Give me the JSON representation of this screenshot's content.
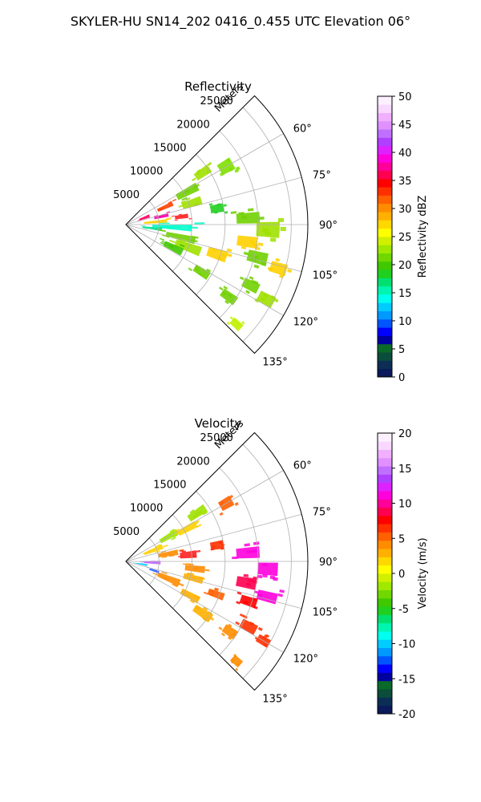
{
  "figure": {
    "title": "SKYLER-HU  SN14_202  0416_0.455 UTC Elevation 06°"
  },
  "chart_data": [
    {
      "type": "heatmap",
      "title": "Reflectivity",
      "rlabel": "Meters",
      "r_ticks": [
        "5000",
        "10000",
        "15000",
        "20000",
        "25000"
      ],
      "theta_ticks": [
        "60°",
        "75°",
        "90°",
        "105°",
        "120°",
        "135°"
      ],
      "theta_range_deg": [
        45,
        135
      ],
      "r_max_m": 27500,
      "grid": true,
      "colorbar": {
        "label": "Reflectivity dBZ",
        "range": [
          0,
          50
        ],
        "ticks": [
          "0",
          "5",
          "10",
          "15",
          "20",
          "25",
          "30",
          "35",
          "40",
          "45",
          "50"
        ],
        "colors": [
          "#0a1a5a",
          "#0c2e54",
          "#0a4d3a",
          "#0a6a2a",
          "#0000a0",
          "#0000ff",
          "#0055ff",
          "#0099ff",
          "#00ccff",
          "#00ffee",
          "#00f5b0",
          "#00e070",
          "#20d020",
          "#40c800",
          "#70d800",
          "#a0e800",
          "#d0f000",
          "#ffff00",
          "#ffd800",
          "#ffb000",
          "#ff8c00",
          "#ff6000",
          "#ff3000",
          "#ff0000",
          "#ff0050",
          "#ff0099",
          "#ff00dd",
          "#dd22ff",
          "#b040ff",
          "#c070ff",
          "#e090ff",
          "#f0b0ff",
          "#f8d8ff",
          "#fcf0ff"
        ]
      },
      "echoes": [
        {
          "az": 77,
          "r": 5500,
          "dr": 2200,
          "da": 5,
          "c": "#ff00aa"
        },
        {
          "az": 70,
          "r": 3000,
          "dr": 1600,
          "da": 7,
          "c": "#ff0066"
        },
        {
          "az": 82,
          "r": 8500,
          "dr": 2000,
          "da": 4,
          "c": "#ff2020"
        },
        {
          "az": 66,
          "r": 6500,
          "dr": 2500,
          "da": 5,
          "c": "#ff4000"
        },
        {
          "az": 85,
          "r": 4500,
          "dr": 3500,
          "da": 5,
          "c": "#ffd000"
        },
        {
          "az": 72,
          "r": 10500,
          "dr": 3000,
          "da": 6,
          "c": "#a0e000"
        },
        {
          "az": 62,
          "r": 10500,
          "dr": 3500,
          "da": 6,
          "c": "#70d000"
        },
        {
          "az": 60,
          "r": 17500,
          "dr": 2200,
          "da": 6,
          "c": "#80e000"
        },
        {
          "az": 56,
          "r": 14000,
          "dr": 2500,
          "da": 5,
          "c": "#a0e000"
        },
        {
          "az": 93,
          "r": 7000,
          "dr": 6000,
          "da": 6,
          "c": "#00ffcc"
        },
        {
          "az": 98,
          "r": 4000,
          "dr": 3000,
          "da": 5,
          "c": "#00e090"
        },
        {
          "az": 103,
          "r": 8500,
          "dr": 4500,
          "da": 6,
          "c": "#70d000"
        },
        {
          "az": 110,
          "r": 10000,
          "dr": 4000,
          "da": 7,
          "c": "#a0e000"
        },
        {
          "az": 116,
          "r": 8000,
          "dr": 3000,
          "da": 7,
          "c": "#40c800"
        },
        {
          "az": 108,
          "r": 14500,
          "dr": 3000,
          "da": 6,
          "c": "#ffd000"
        },
        {
          "az": 87,
          "r": 18500,
          "dr": 3500,
          "da": 5,
          "c": "#70d000"
        },
        {
          "az": 92,
          "r": 21500,
          "dr": 3500,
          "da": 6,
          "c": "#a0e000"
        },
        {
          "az": 98,
          "r": 18500,
          "dr": 3000,
          "da": 5,
          "c": "#ffd000"
        },
        {
          "az": 104,
          "r": 20500,
          "dr": 3000,
          "da": 5,
          "c": "#70d000"
        },
        {
          "az": 106,
          "r": 24000,
          "dr": 2500,
          "da": 4,
          "c": "#ffd000"
        },
        {
          "az": 116,
          "r": 21000,
          "dr": 2500,
          "da": 4,
          "c": "#70d000"
        },
        {
          "az": 118,
          "r": 24000,
          "dr": 2500,
          "da": 4,
          "c": "#a0e000"
        },
        {
          "az": 125,
          "r": 19000,
          "dr": 2500,
          "da": 4,
          "c": "#70d000"
        },
        {
          "az": 132,
          "r": 22500,
          "dr": 1800,
          "da": 3,
          "c": "#c0f000"
        },
        {
          "az": 122,
          "r": 13500,
          "dr": 2500,
          "da": 5,
          "c": "#70d000"
        },
        {
          "az": 80,
          "r": 14000,
          "dr": 2000,
          "da": 5,
          "c": "#20d020"
        }
      ]
    },
    {
      "type": "heatmap",
      "title": "Velocity",
      "rlabel": "Meters",
      "r_ticks": [
        "5000",
        "10000",
        "15000",
        "20000",
        "25000"
      ],
      "theta_ticks": [
        "60°",
        "75°",
        "90°",
        "105°",
        "120°",
        "135°"
      ],
      "theta_range_deg": [
        45,
        135
      ],
      "r_max_m": 27500,
      "grid": true,
      "colorbar": {
        "label": "Velocity (m/s)",
        "range": [
          -20,
          20
        ],
        "ticks": [
          "-20",
          "-15",
          "-10",
          "-5",
          "0",
          "5",
          "10",
          "15",
          "20"
        ],
        "colors": [
          "#0a1a5a",
          "#0c2e54",
          "#0a4d3a",
          "#0a6a2a",
          "#0000a0",
          "#0000ff",
          "#0055ff",
          "#0099ff",
          "#00ccff",
          "#00ffee",
          "#00f5b0",
          "#00e070",
          "#20d020",
          "#40c800",
          "#70d800",
          "#a0e800",
          "#d0f000",
          "#ffff00",
          "#ffd800",
          "#ffb000",
          "#ff8c00",
          "#ff6000",
          "#ff3000",
          "#ff0000",
          "#ff0050",
          "#ff0099",
          "#ff00dd",
          "#dd22ff",
          "#b040ff",
          "#c070ff",
          "#e090ff",
          "#f0b0ff",
          "#f8d8ff",
          "#fcf0ff"
        ]
      },
      "echoes": [
        {
          "az": 68,
          "r": 4500,
          "dr": 3000,
          "da": 7,
          "c": "#ffd000"
        },
        {
          "az": 60,
          "r": 7500,
          "dr": 3000,
          "da": 6,
          "c": "#a0e800"
        },
        {
          "az": 56,
          "r": 13000,
          "dr": 3000,
          "da": 5,
          "c": "#a0e000"
        },
        {
          "az": 62,
          "r": 10500,
          "dr": 3000,
          "da": 5,
          "c": "#ffd000"
        },
        {
          "az": 80,
          "r": 6500,
          "dr": 3000,
          "da": 6,
          "c": "#ff8c00"
        },
        {
          "az": 92,
          "r": 4000,
          "dr": 2500,
          "da": 6,
          "c": "#c060ff"
        },
        {
          "az": 100,
          "r": 2500,
          "dr": 1600,
          "da": 5,
          "c": "#00ccff"
        },
        {
          "az": 108,
          "r": 4500,
          "dr": 1500,
          "da": 4,
          "c": "#3060ff"
        },
        {
          "az": 112,
          "r": 7000,
          "dr": 3500,
          "da": 7,
          "c": "#ff8c00"
        },
        {
          "az": 84,
          "r": 9500,
          "dr": 2500,
          "da": 6,
          "c": "#ff2020"
        },
        {
          "az": 96,
          "r": 10500,
          "dr": 3000,
          "da": 5,
          "c": "#ff8c00"
        },
        {
          "az": 104,
          "r": 10500,
          "dr": 3000,
          "da": 5,
          "c": "#ffb000"
        },
        {
          "az": 118,
          "r": 11000,
          "dr": 3000,
          "da": 5,
          "c": "#ffb000"
        },
        {
          "az": 124,
          "r": 14000,
          "dr": 3000,
          "da": 5,
          "c": "#ffb000"
        },
        {
          "az": 110,
          "r": 14500,
          "dr": 2500,
          "da": 4,
          "c": "#ff6000"
        },
        {
          "az": 86,
          "r": 18500,
          "dr": 3500,
          "da": 5,
          "c": "#ff00dd"
        },
        {
          "az": 93,
          "r": 21500,
          "dr": 3000,
          "da": 5,
          "c": "#ff00dd"
        },
        {
          "az": 100,
          "r": 18500,
          "dr": 3000,
          "da": 5,
          "c": "#ff0050"
        },
        {
          "az": 104,
          "r": 22000,
          "dr": 3000,
          "da": 4,
          "c": "#ff00dd"
        },
        {
          "az": 108,
          "r": 19500,
          "dr": 2500,
          "da": 4,
          "c": "#ff0000"
        },
        {
          "az": 118,
          "r": 21000,
          "dr": 2500,
          "da": 4,
          "c": "#ff3000"
        },
        {
          "az": 120,
          "r": 24000,
          "dr": 2000,
          "da": 3,
          "c": "#ff3000"
        },
        {
          "az": 124,
          "r": 19000,
          "dr": 2200,
          "da": 4,
          "c": "#ff8c00"
        },
        {
          "az": 132,
          "r": 22500,
          "dr": 1600,
          "da": 3,
          "c": "#ff8c00"
        },
        {
          "az": 60,
          "r": 17500,
          "dr": 2000,
          "da": 5,
          "c": "#ff6000"
        },
        {
          "az": 80,
          "r": 14000,
          "dr": 2000,
          "da": 5,
          "c": "#ff3000"
        }
      ]
    }
  ]
}
